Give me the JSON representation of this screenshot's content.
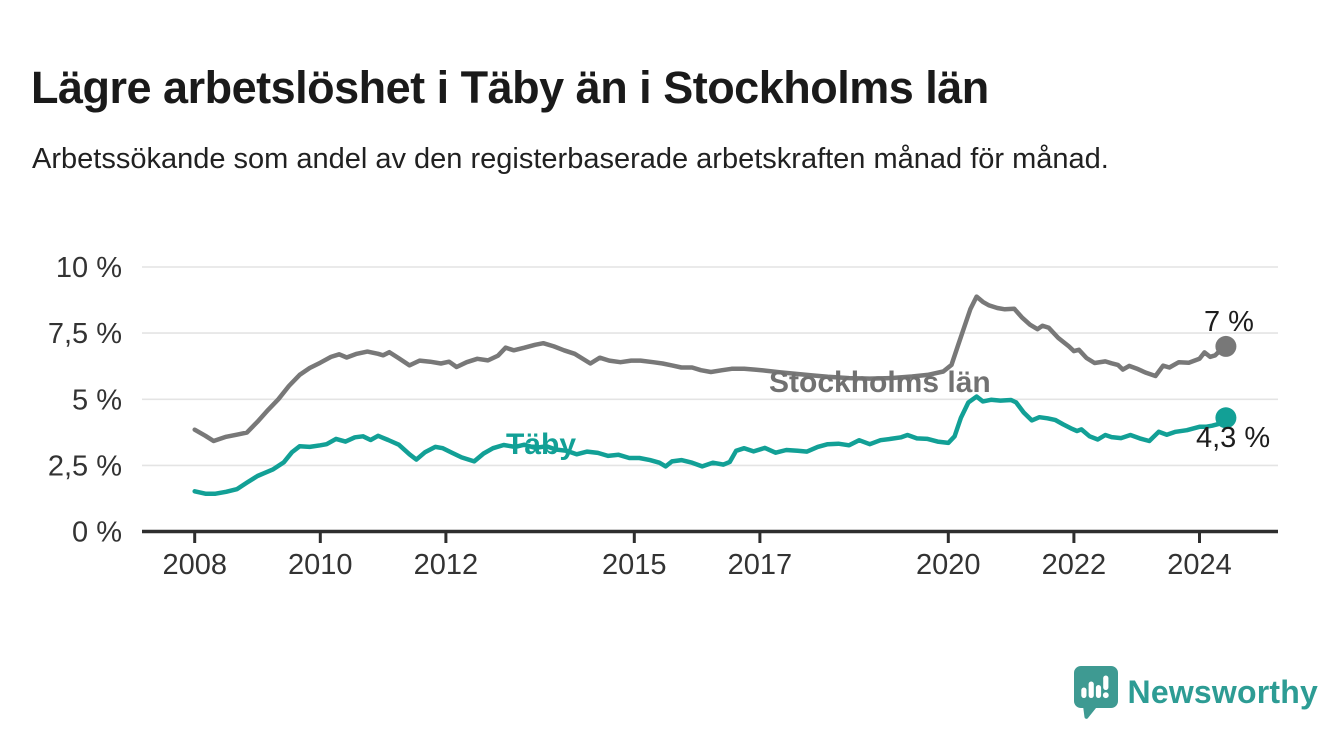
{
  "page": {
    "title": "Lägre arbetslöshet i Täby än i Stockholms län",
    "subtitle": "Arbetssökande som andel av den registerbaserade arbetskraften månad för månad."
  },
  "branding": {
    "name": "Newsworthy",
    "icon": "newsworthy-bubble-bar-chart-icon",
    "color": "#2d9c94"
  },
  "colors": {
    "taby_line": "#12a096",
    "stockholm_line": "#787878",
    "stockholm_label": "#717171",
    "grid": "#e4e4e4",
    "axis": "#2e2e2e",
    "tick_text": "#333333",
    "end_label_text": "#1d1d1d",
    "title_text": "#1a1a1a"
  },
  "chart_data": {
    "type": "line",
    "title": "Lägre arbetslöshet i Täby än i Stockholms län",
    "subtitle": "Arbetssökande som andel av den registerbaserade arbetskraften månad för månad.",
    "unit": "%",
    "grid": "horizontal",
    "legend": "inline-labels",
    "x_axis": {
      "range": [
        2007.16,
        2025.25
      ],
      "tick_years": [
        2008,
        2010,
        2012,
        2015,
        2017,
        2020,
        2022,
        2024
      ],
      "tick_labels": [
        "2008",
        "2010",
        "2012",
        "2015",
        "2017",
        "2020",
        "2022",
        "2024"
      ]
    },
    "y_axis": {
      "range": [
        0,
        10
      ],
      "tick_values": [
        0,
        2.5,
        5,
        7.5,
        10
      ],
      "tick_labels": [
        "0 %",
        "2,5 %",
        "5 %",
        "7,5 %",
        "10 %"
      ]
    },
    "series": [
      {
        "name": "Stockholms län",
        "color": "#787878",
        "end_label": "7 %",
        "end_value": 7.0,
        "points": [
          [
            2008.0,
            3.85
          ],
          [
            2008.17,
            3.62
          ],
          [
            2008.3,
            3.42
          ],
          [
            2008.5,
            3.58
          ],
          [
            2008.67,
            3.66
          ],
          [
            2008.83,
            3.74
          ],
          [
            2009.0,
            4.15
          ],
          [
            2009.17,
            4.6
          ],
          [
            2009.33,
            5.0
          ],
          [
            2009.5,
            5.5
          ],
          [
            2009.67,
            5.92
          ],
          [
            2009.83,
            6.18
          ],
          [
            2010.0,
            6.38
          ],
          [
            2010.17,
            6.6
          ],
          [
            2010.3,
            6.7
          ],
          [
            2010.42,
            6.58
          ],
          [
            2010.58,
            6.72
          ],
          [
            2010.75,
            6.8
          ],
          [
            2010.92,
            6.72
          ],
          [
            2011.0,
            6.66
          ],
          [
            2011.1,
            6.78
          ],
          [
            2011.25,
            6.55
          ],
          [
            2011.42,
            6.28
          ],
          [
            2011.58,
            6.46
          ],
          [
            2011.75,
            6.42
          ],
          [
            2011.92,
            6.35
          ],
          [
            2012.05,
            6.42
          ],
          [
            2012.17,
            6.22
          ],
          [
            2012.33,
            6.4
          ],
          [
            2012.5,
            6.53
          ],
          [
            2012.67,
            6.47
          ],
          [
            2012.83,
            6.65
          ],
          [
            2012.95,
            6.95
          ],
          [
            2013.08,
            6.85
          ],
          [
            2013.25,
            6.95
          ],
          [
            2013.42,
            7.06
          ],
          [
            2013.55,
            7.12
          ],
          [
            2013.72,
            7.0
          ],
          [
            2013.88,
            6.85
          ],
          [
            2014.05,
            6.72
          ],
          [
            2014.3,
            6.35
          ],
          [
            2014.45,
            6.57
          ],
          [
            2014.6,
            6.46
          ],
          [
            2014.78,
            6.4
          ],
          [
            2014.95,
            6.46
          ],
          [
            2015.1,
            6.46
          ],
          [
            2015.3,
            6.4
          ],
          [
            2015.45,
            6.35
          ],
          [
            2015.6,
            6.28
          ],
          [
            2015.75,
            6.2
          ],
          [
            2015.92,
            6.2
          ],
          [
            2016.06,
            6.1
          ],
          [
            2016.22,
            6.03
          ],
          [
            2016.4,
            6.1
          ],
          [
            2016.55,
            6.15
          ],
          [
            2016.75,
            6.15
          ],
          [
            2016.92,
            6.12
          ],
          [
            2017.1,
            6.08
          ],
          [
            2017.33,
            6.02
          ],
          [
            2017.58,
            5.96
          ],
          [
            2017.83,
            5.9
          ],
          [
            2018.08,
            5.85
          ],
          [
            2018.42,
            5.8
          ],
          [
            2018.75,
            5.78
          ],
          [
            2019.08,
            5.8
          ],
          [
            2019.42,
            5.86
          ],
          [
            2019.67,
            5.92
          ],
          [
            2019.92,
            6.05
          ],
          [
            2020.05,
            6.3
          ],
          [
            2020.15,
            7.0
          ],
          [
            2020.25,
            7.7
          ],
          [
            2020.35,
            8.4
          ],
          [
            2020.45,
            8.88
          ],
          [
            2020.55,
            8.68
          ],
          [
            2020.65,
            8.55
          ],
          [
            2020.78,
            8.45
          ],
          [
            2020.9,
            8.4
          ],
          [
            2021.05,
            8.42
          ],
          [
            2021.17,
            8.1
          ],
          [
            2021.3,
            7.82
          ],
          [
            2021.42,
            7.65
          ],
          [
            2021.5,
            7.78
          ],
          [
            2021.6,
            7.7
          ],
          [
            2021.75,
            7.32
          ],
          [
            2021.92,
            7.0
          ],
          [
            2022.0,
            6.82
          ],
          [
            2022.08,
            6.87
          ],
          [
            2022.2,
            6.56
          ],
          [
            2022.33,
            6.37
          ],
          [
            2022.5,
            6.43
          ],
          [
            2022.6,
            6.36
          ],
          [
            2022.7,
            6.3
          ],
          [
            2022.78,
            6.12
          ],
          [
            2022.88,
            6.26
          ],
          [
            2023.0,
            6.16
          ],
          [
            2023.15,
            6.0
          ],
          [
            2023.3,
            5.88
          ],
          [
            2023.42,
            6.27
          ],
          [
            2023.52,
            6.2
          ],
          [
            2023.67,
            6.4
          ],
          [
            2023.83,
            6.38
          ],
          [
            2024.0,
            6.53
          ],
          [
            2024.08,
            6.77
          ],
          [
            2024.17,
            6.6
          ],
          [
            2024.25,
            6.66
          ],
          [
            2024.33,
            6.85
          ],
          [
            2024.42,
            7.0
          ]
        ]
      },
      {
        "name": "Täby",
        "color": "#12a096",
        "end_label": "4,3 %",
        "end_value": 4.3,
        "points": [
          [
            2008.0,
            1.52
          ],
          [
            2008.17,
            1.43
          ],
          [
            2008.33,
            1.43
          ],
          [
            2008.5,
            1.5
          ],
          [
            2008.67,
            1.6
          ],
          [
            2008.83,
            1.85
          ],
          [
            2009.0,
            2.1
          ],
          [
            2009.1,
            2.2
          ],
          [
            2009.25,
            2.35
          ],
          [
            2009.42,
            2.62
          ],
          [
            2009.55,
            3.0
          ],
          [
            2009.67,
            3.22
          ],
          [
            2009.83,
            3.2
          ],
          [
            2010.0,
            3.26
          ],
          [
            2010.1,
            3.3
          ],
          [
            2010.25,
            3.5
          ],
          [
            2010.4,
            3.4
          ],
          [
            2010.55,
            3.56
          ],
          [
            2010.68,
            3.6
          ],
          [
            2010.8,
            3.46
          ],
          [
            2010.92,
            3.62
          ],
          [
            2011.08,
            3.46
          ],
          [
            2011.25,
            3.28
          ],
          [
            2011.42,
            2.92
          ],
          [
            2011.53,
            2.72
          ],
          [
            2011.67,
            3.0
          ],
          [
            2011.83,
            3.2
          ],
          [
            2011.95,
            3.15
          ],
          [
            2012.1,
            2.97
          ],
          [
            2012.25,
            2.8
          ],
          [
            2012.45,
            2.65
          ],
          [
            2012.6,
            2.95
          ],
          [
            2012.75,
            3.15
          ],
          [
            2012.92,
            3.27
          ],
          [
            2013.1,
            3.2
          ],
          [
            2013.25,
            3.28
          ],
          [
            2013.42,
            3.16
          ],
          [
            2013.6,
            3.22
          ],
          [
            2013.75,
            3.1
          ],
          [
            2013.92,
            3.05
          ],
          [
            2014.08,
            2.92
          ],
          [
            2014.25,
            3.02
          ],
          [
            2014.42,
            2.97
          ],
          [
            2014.58,
            2.86
          ],
          [
            2014.75,
            2.9
          ],
          [
            2014.92,
            2.78
          ],
          [
            2015.08,
            2.78
          ],
          [
            2015.25,
            2.7
          ],
          [
            2015.4,
            2.6
          ],
          [
            2015.5,
            2.46
          ],
          [
            2015.6,
            2.65
          ],
          [
            2015.75,
            2.7
          ],
          [
            2015.92,
            2.6
          ],
          [
            2016.08,
            2.46
          ],
          [
            2016.25,
            2.6
          ],
          [
            2016.42,
            2.53
          ],
          [
            2016.52,
            2.63
          ],
          [
            2016.62,
            3.05
          ],
          [
            2016.75,
            3.15
          ],
          [
            2016.9,
            3.03
          ],
          [
            2017.08,
            3.16
          ],
          [
            2017.25,
            2.98
          ],
          [
            2017.42,
            3.08
          ],
          [
            2017.6,
            3.05
          ],
          [
            2017.75,
            3.02
          ],
          [
            2017.92,
            3.2
          ],
          [
            2018.08,
            3.3
          ],
          [
            2018.25,
            3.32
          ],
          [
            2018.42,
            3.26
          ],
          [
            2018.58,
            3.45
          ],
          [
            2018.75,
            3.3
          ],
          [
            2018.92,
            3.45
          ],
          [
            2019.08,
            3.5
          ],
          [
            2019.25,
            3.56
          ],
          [
            2019.35,
            3.65
          ],
          [
            2019.5,
            3.52
          ],
          [
            2019.67,
            3.5
          ],
          [
            2019.83,
            3.4
          ],
          [
            2020.0,
            3.35
          ],
          [
            2020.1,
            3.6
          ],
          [
            2020.2,
            4.3
          ],
          [
            2020.32,
            4.88
          ],
          [
            2020.45,
            5.1
          ],
          [
            2020.55,
            4.92
          ],
          [
            2020.68,
            4.98
          ],
          [
            2020.83,
            4.95
          ],
          [
            2021.0,
            4.97
          ],
          [
            2021.08,
            4.88
          ],
          [
            2021.2,
            4.5
          ],
          [
            2021.33,
            4.2
          ],
          [
            2021.45,
            4.32
          ],
          [
            2021.58,
            4.28
          ],
          [
            2021.7,
            4.22
          ],
          [
            2021.83,
            4.05
          ],
          [
            2021.95,
            3.9
          ],
          [
            2022.05,
            3.8
          ],
          [
            2022.12,
            3.86
          ],
          [
            2022.25,
            3.6
          ],
          [
            2022.38,
            3.48
          ],
          [
            2022.5,
            3.65
          ],
          [
            2022.6,
            3.57
          ],
          [
            2022.75,
            3.53
          ],
          [
            2022.9,
            3.65
          ],
          [
            2023.05,
            3.52
          ],
          [
            2023.2,
            3.42
          ],
          [
            2023.35,
            3.77
          ],
          [
            2023.48,
            3.66
          ],
          [
            2023.62,
            3.77
          ],
          [
            2023.8,
            3.83
          ],
          [
            2024.0,
            3.96
          ],
          [
            2024.1,
            3.96
          ],
          [
            2024.2,
            4.0
          ],
          [
            2024.3,
            4.06
          ],
          [
            2024.42,
            4.3
          ]
        ]
      }
    ]
  }
}
